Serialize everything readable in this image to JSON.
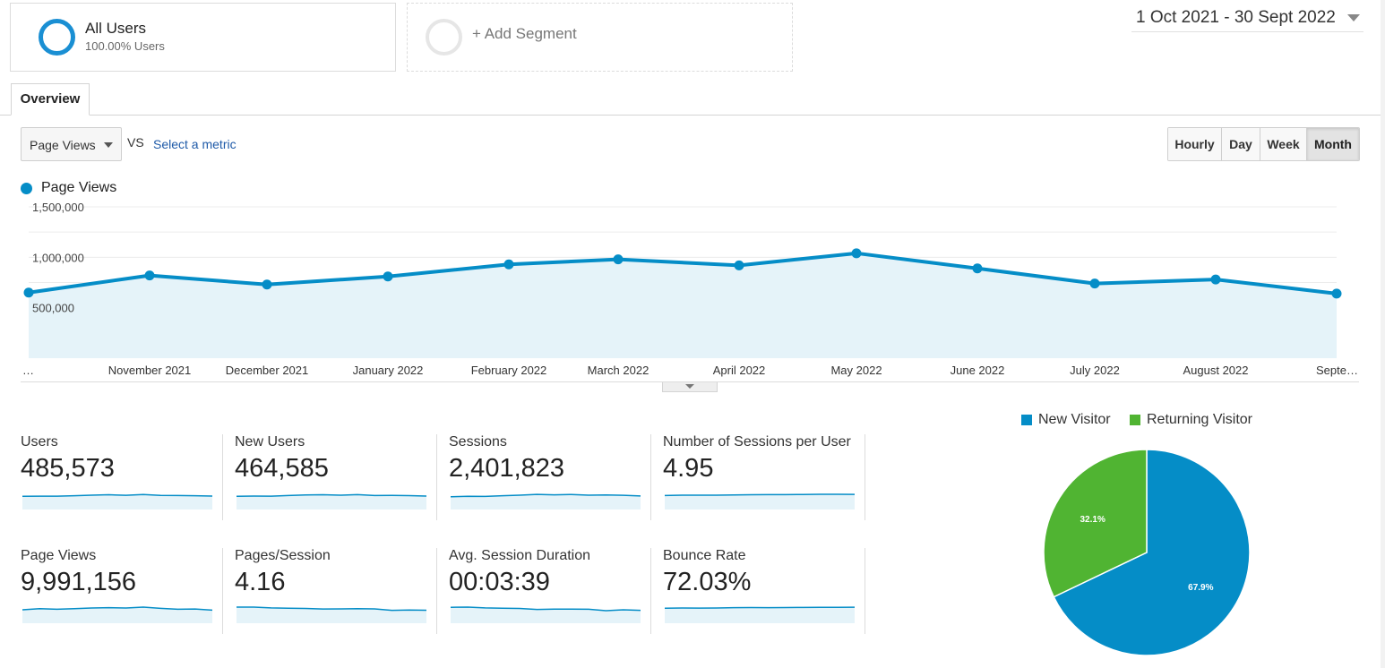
{
  "segments": {
    "all_users": {
      "title": "All Users",
      "subtitle": "100.00% Users"
    },
    "add_segment": {
      "label": "+ Add Segment"
    }
  },
  "date_range": {
    "label": "1 Oct 2021 - 30 Sept 2022"
  },
  "tabs": [
    {
      "label": "Overview",
      "active": true
    }
  ],
  "metric_picker": {
    "selected": "Page Views",
    "vs_label": "VS",
    "select_metric_link": "Select a metric"
  },
  "granularity": {
    "options": [
      "Hourly",
      "Day",
      "Week",
      "Month"
    ],
    "selected": "Month"
  },
  "colors": {
    "accent_blue": "#058dc7",
    "area_fill": "#e5f3f9",
    "returning_green": "#50b432"
  },
  "chart_data": {
    "type": "line",
    "legend": [
      "Page Views"
    ],
    "x_labels": [
      "…",
      "November 2021",
      "December 2021",
      "January 2022",
      "February 2022",
      "March 2022",
      "April 2022",
      "May 2022",
      "June 2022",
      "July 2022",
      "August 2022",
      "Septe…"
    ],
    "series": [
      {
        "name": "Page Views",
        "values": [
          650000,
          820000,
          730000,
          810000,
          930000,
          980000,
          920000,
          1040000,
          890000,
          740000,
          780000,
          640000
        ]
      }
    ],
    "y_tick_labels": [
      "1,500,000",
      "1,000,000",
      "500,000"
    ],
    "y_ticks": [
      1500000,
      1000000,
      500000
    ],
    "ylim": [
      0,
      1500000
    ],
    "grid": true,
    "fill": "area"
  },
  "metrics": [
    {
      "label": "Users",
      "value": "485,573",
      "spark": [
        0.45,
        0.48,
        0.47,
        0.57,
        0.66,
        0.74,
        0.64,
        0.8,
        0.62,
        0.6,
        0.56,
        0.5
      ]
    },
    {
      "label": "New Users",
      "value": "464,585",
      "spark": [
        0.45,
        0.5,
        0.48,
        0.6,
        0.7,
        0.76,
        0.66,
        0.78,
        0.6,
        0.62,
        0.58,
        0.5
      ]
    },
    {
      "label": "Sessions",
      "value": "2,401,823",
      "spark": [
        0.38,
        0.45,
        0.44,
        0.56,
        0.66,
        0.82,
        0.72,
        0.8,
        0.66,
        0.7,
        0.64,
        0.52
      ]
    },
    {
      "label": "Number of Sessions per User",
      "value": "4.95",
      "spark": [
        0.6,
        0.66,
        0.66,
        0.66,
        0.7,
        0.76,
        0.78,
        0.78,
        0.8,
        0.84,
        0.84,
        0.82
      ]
    },
    {
      "label": "Page Views",
      "value": "9,991,156",
      "spark": [
        0.5,
        0.7,
        0.6,
        0.7,
        0.84,
        0.9,
        0.84,
        1.0,
        0.78,
        0.6,
        0.64,
        0.44
      ]
    },
    {
      "label": "Pages/Session",
      "value": "4.16",
      "spark": [
        1.0,
        1.0,
        0.86,
        0.8,
        0.76,
        0.64,
        0.66,
        0.7,
        0.66,
        0.4,
        0.46,
        0.42
      ]
    },
    {
      "label": "Avg. Session Duration",
      "value": "00:03:39",
      "spark": [
        0.96,
        1.0,
        0.86,
        0.8,
        0.76,
        0.56,
        0.62,
        0.62,
        0.6,
        0.34,
        0.5,
        0.4
      ]
    },
    {
      "label": "Bounce Rate",
      "value": "72.03%",
      "spark": [
        0.8,
        0.84,
        0.82,
        0.84,
        0.9,
        0.92,
        0.9,
        0.92,
        0.94,
        0.96,
        0.96,
        0.98
      ]
    }
  ],
  "visitor_pie": {
    "type": "pie",
    "legend": [
      {
        "label": "New Visitor",
        "color": "#058dc7"
      },
      {
        "label": "Returning Visitor",
        "color": "#50b432"
      }
    ],
    "slices": [
      {
        "label": "New Visitor",
        "value": 67.9,
        "display": "67.9%",
        "color": "#058dc7"
      },
      {
        "label": "Returning Visitor",
        "value": 32.1,
        "display": "32.1%",
        "color": "#50b432"
      }
    ]
  }
}
